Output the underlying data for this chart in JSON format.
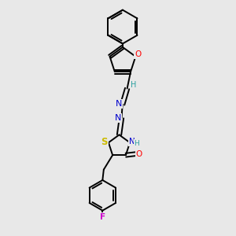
{
  "background_color": "#e8e8e8",
  "bond_color": "#000000",
  "atom_colors": {
    "O": "#ff0000",
    "N": "#0000cd",
    "S": "#ccbb00",
    "F": "#cc00cc",
    "C": "#000000",
    "H": "#2aa0a0"
  },
  "figsize": [
    3.0,
    3.0
  ],
  "dpi": 100
}
